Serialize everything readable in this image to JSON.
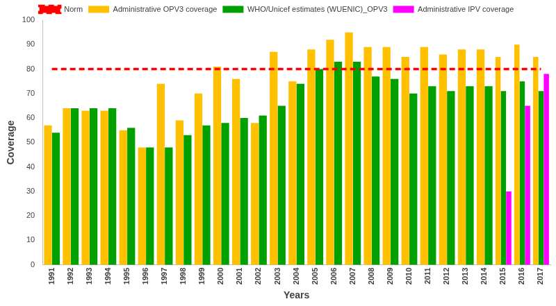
{
  "chart_data": {
    "type": "bar",
    "x_label": "Years",
    "y_label": "Coverage",
    "categories": [
      "1991",
      "1992",
      "1993",
      "1994",
      "1995",
      "1996",
      "1997",
      "1998",
      "1999",
      "2000",
      "2001",
      "2002",
      "2003",
      "2004",
      "2005",
      "2006",
      "2007",
      "2008",
      "2009",
      "2010",
      "2011",
      "2012",
      "2013",
      "2014",
      "2015",
      "2016",
      "2017"
    ],
    "series": [
      {
        "name": "Administrative OPV3 coverage",
        "type": "bar",
        "color": "#FFC000",
        "values": [
          57,
          64,
          63,
          63,
          55,
          48,
          74,
          59,
          70,
          81,
          76,
          58,
          87,
          75,
          88,
          92,
          95,
          89,
          89,
          85,
          89,
          86,
          88,
          88,
          85,
          90,
          85
        ]
      },
      {
        "name": "WHO/Unicef estimates (WUENIC)_OPV3",
        "type": "bar",
        "color": "#00A000",
        "values": [
          54,
          64,
          64,
          64,
          56,
          48,
          48,
          53,
          57,
          58,
          60,
          61,
          65,
          74,
          80,
          83,
          83,
          77,
          76,
          70,
          73,
          71,
          73,
          73,
          71,
          75,
          71
        ]
      },
      {
        "name": "Administrative IPV coverage",
        "type": "bar",
        "color": "#FF00FF",
        "values": [
          null,
          null,
          null,
          null,
          null,
          null,
          null,
          null,
          null,
          null,
          null,
          null,
          null,
          null,
          null,
          null,
          null,
          null,
          null,
          null,
          null,
          null,
          null,
          null,
          30,
          65,
          78
        ]
      },
      {
        "name": "Norm",
        "type": "line",
        "line_style": "dashed",
        "color": "#FF0000",
        "values": [
          80,
          80,
          80,
          80,
          80,
          80,
          80,
          80,
          80,
          80,
          80,
          80,
          80,
          80,
          80,
          80,
          80,
          80,
          80,
          80,
          80,
          80,
          80,
          80,
          80,
          80,
          80
        ]
      }
    ],
    "ylim": [
      0,
      100
    ],
    "yticks": [
      0,
      10,
      20,
      30,
      40,
      50,
      60,
      70,
      80,
      90,
      100
    ],
    "grid": false,
    "legend": "top"
  }
}
